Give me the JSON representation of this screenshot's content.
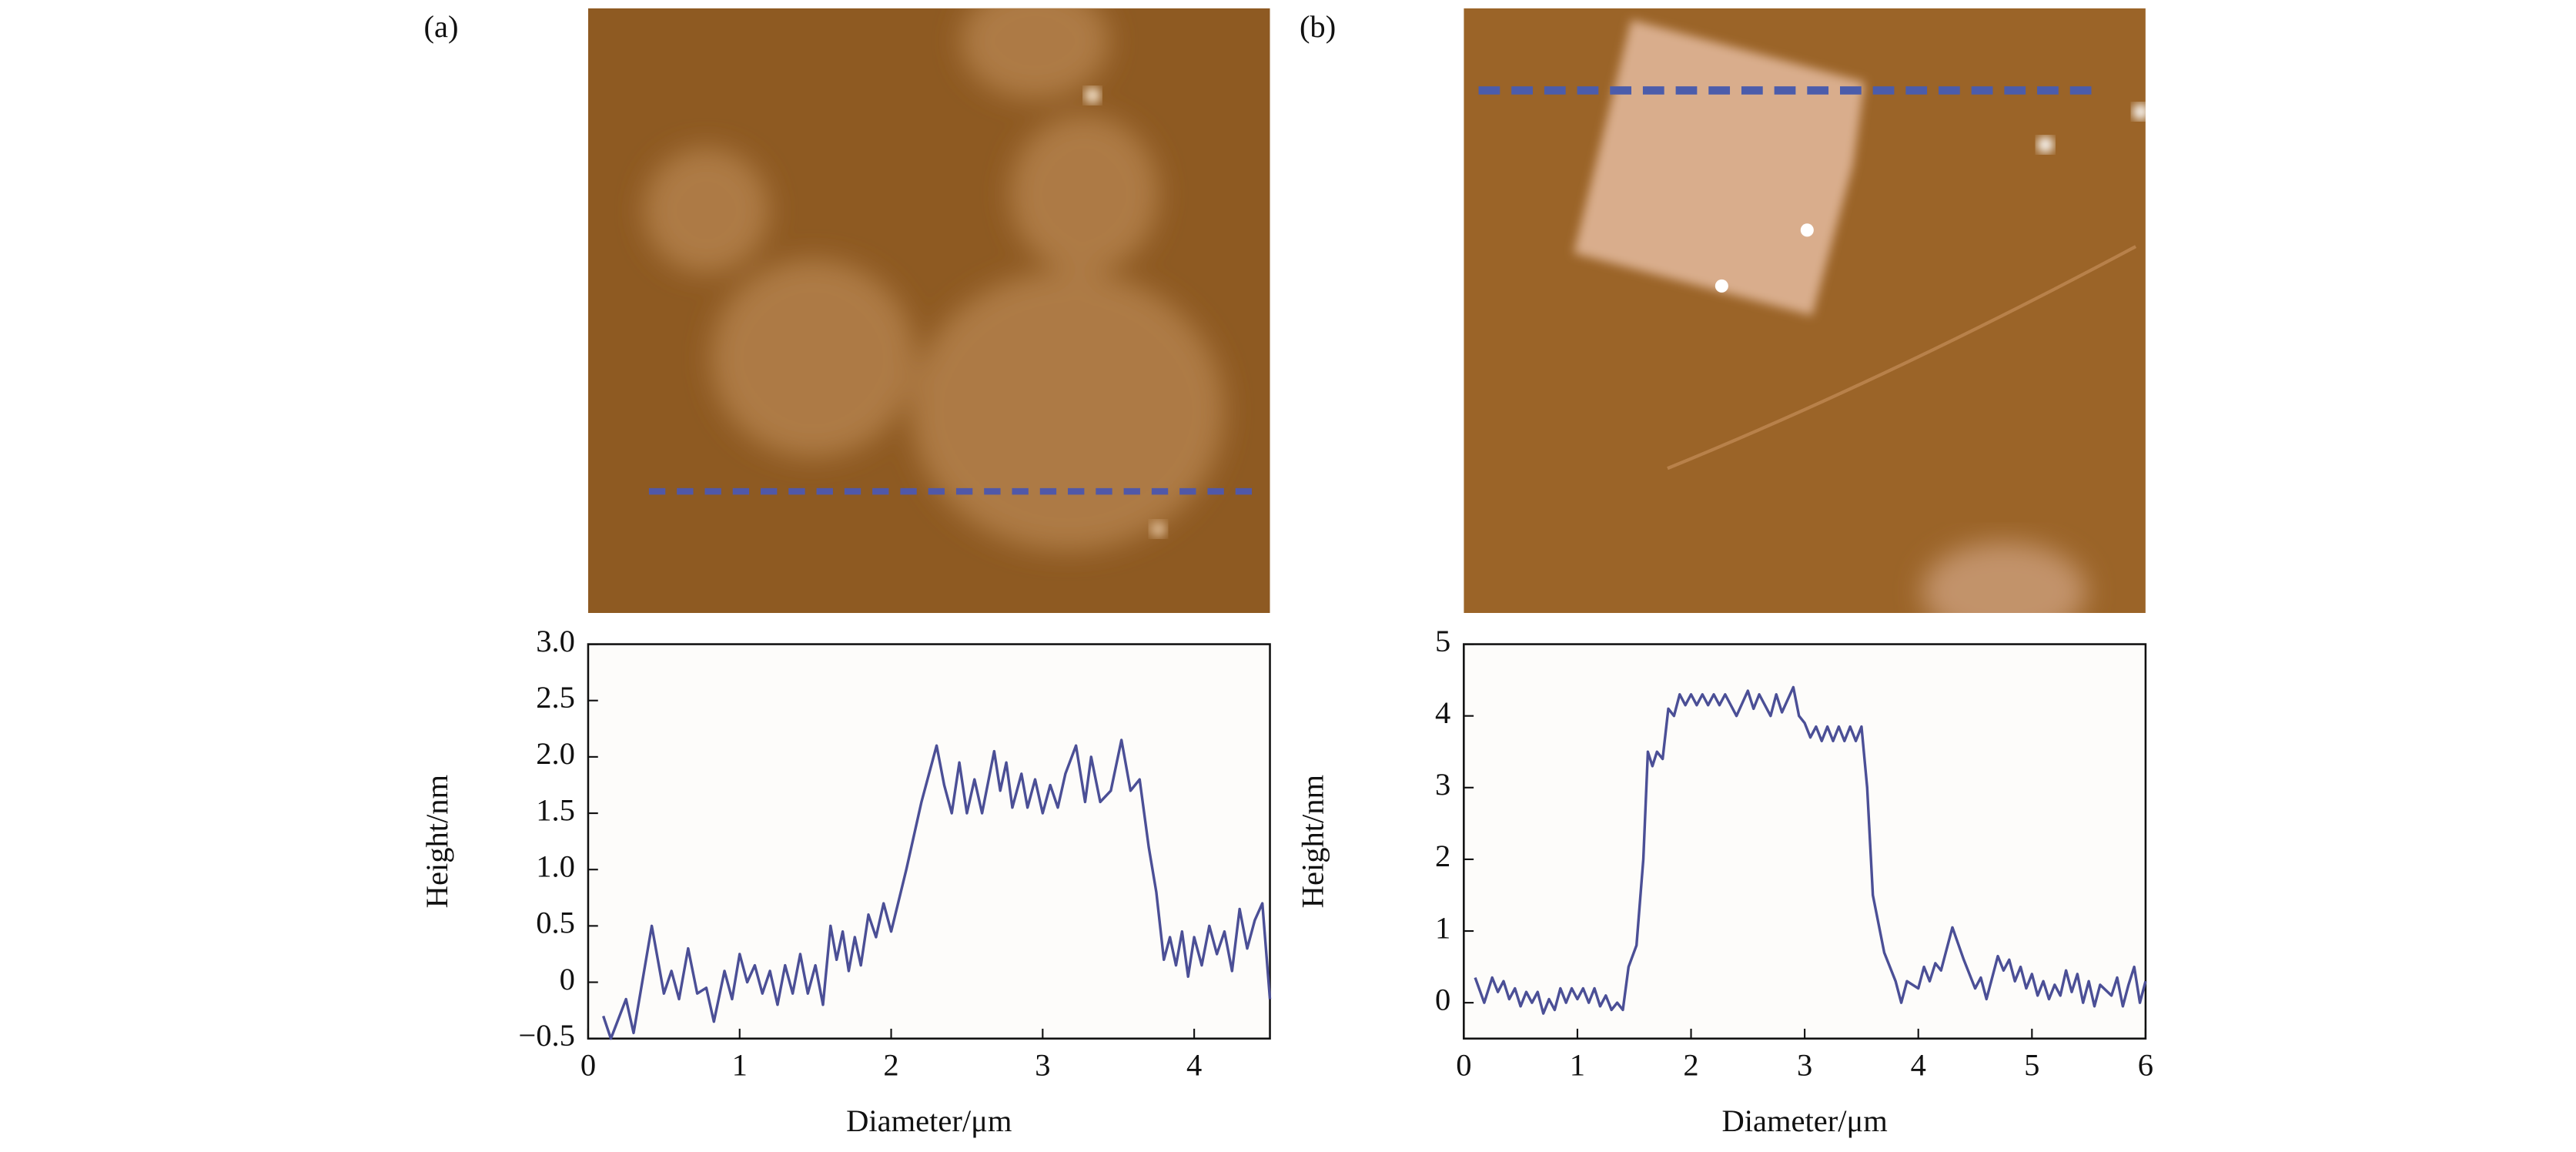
{
  "chart_data": [
    {
      "type": "line",
      "panel_label": "(a)",
      "x_label": "Diameter/μm",
      "y_label": "Height/nm",
      "xlim": [
        0,
        4.5
      ],
      "ylim": [
        -0.5,
        3.0
      ],
      "xticks": [
        0,
        1,
        2,
        3,
        4
      ],
      "yticks": [
        {
          "value": -0.5,
          "label": "−0.5"
        },
        0,
        0.5,
        {
          "value": 1.0,
          "label": "1.0"
        },
        1.5,
        {
          "value": 2.0,
          "label": "2.0"
        },
        2.5,
        {
          "value": 3.0,
          "label": "3.0"
        }
      ],
      "x": [
        0.1,
        0.15,
        0.25,
        0.3,
        0.42,
        0.5,
        0.55,
        0.6,
        0.66,
        0.72,
        0.78,
        0.83,
        0.9,
        0.95,
        1.0,
        1.05,
        1.1,
        1.15,
        1.2,
        1.25,
        1.3,
        1.35,
        1.4,
        1.45,
        1.5,
        1.55,
        1.6,
        1.64,
        1.68,
        1.72,
        1.76,
        1.8,
        1.85,
        1.9,
        1.95,
        2.0,
        2.1,
        2.2,
        2.3,
        2.35,
        2.4,
        2.45,
        2.5,
        2.55,
        2.6,
        2.68,
        2.72,
        2.76,
        2.8,
        2.86,
        2.9,
        2.95,
        3.0,
        3.05,
        3.1,
        3.15,
        3.22,
        3.28,
        3.32,
        3.38,
        3.45,
        3.52,
        3.58,
        3.64,
        3.7,
        3.75,
        3.8,
        3.84,
        3.88,
        3.92,
        3.96,
        4.0,
        4.05,
        4.1,
        4.15,
        4.2,
        4.25,
        4.3,
        4.35,
        4.4,
        4.45,
        4.5
      ],
      "series": [
        {
          "color": "#4b4f96",
          "values": [
            -0.3,
            -0.5,
            -0.15,
            -0.45,
            0.5,
            -0.1,
            0.1,
            -0.15,
            0.3,
            -0.1,
            -0.05,
            -0.35,
            0.1,
            -0.15,
            0.25,
            0.0,
            0.15,
            -0.1,
            0.1,
            -0.2,
            0.15,
            -0.1,
            0.25,
            -0.1,
            0.15,
            -0.2,
            0.5,
            0.2,
            0.45,
            0.1,
            0.4,
            0.15,
            0.6,
            0.4,
            0.7,
            0.45,
            1.0,
            1.6,
            2.1,
            1.75,
            1.5,
            1.95,
            1.5,
            1.8,
            1.5,
            2.05,
            1.7,
            1.95,
            1.55,
            1.85,
            1.55,
            1.8,
            1.5,
            1.75,
            1.55,
            1.85,
            2.1,
            1.6,
            2.0,
            1.6,
            1.7,
            2.15,
            1.7,
            1.8,
            1.2,
            0.8,
            0.2,
            0.4,
            0.15,
            0.45,
            0.05,
            0.4,
            0.15,
            0.5,
            0.25,
            0.45,
            0.1,
            0.65,
            0.3,
            0.55,
            0.7,
            -0.15
          ]
        }
      ]
    },
    {
      "type": "line",
      "panel_label": "(b)",
      "x_label": "Diameter/μm",
      "y_label": "Height/nm",
      "xlim": [
        0,
        6
      ],
      "ylim": [
        -0.5,
        5
      ],
      "xticks": [
        0,
        1,
        2,
        3,
        4,
        5,
        6
      ],
      "yticks": [
        0,
        1,
        2,
        3,
        4,
        5
      ],
      "x": [
        0.1,
        0.18,
        0.25,
        0.3,
        0.35,
        0.4,
        0.45,
        0.5,
        0.55,
        0.6,
        0.65,
        0.7,
        0.75,
        0.8,
        0.85,
        0.9,
        0.95,
        1.0,
        1.05,
        1.1,
        1.15,
        1.2,
        1.25,
        1.3,
        1.35,
        1.4,
        1.45,
        1.52,
        1.58,
        1.62,
        1.66,
        1.7,
        1.75,
        1.8,
        1.85,
        1.9,
        1.95,
        2.0,
        2.05,
        2.1,
        2.15,
        2.2,
        2.25,
        2.3,
        2.4,
        2.5,
        2.55,
        2.6,
        2.7,
        2.75,
        2.8,
        2.9,
        2.95,
        3.0,
        3.05,
        3.1,
        3.15,
        3.2,
        3.25,
        3.3,
        3.35,
        3.4,
        3.45,
        3.5,
        3.55,
        3.6,
        3.7,
        3.8,
        3.85,
        3.9,
        4.0,
        4.05,
        4.1,
        4.15,
        4.2,
        4.3,
        4.4,
        4.45,
        4.5,
        4.55,
        4.6,
        4.7,
        4.75,
        4.8,
        4.85,
        4.9,
        4.95,
        5.0,
        5.05,
        5.1,
        5.15,
        5.2,
        5.25,
        5.3,
        5.35,
        5.4,
        5.45,
        5.5,
        5.55,
        5.6,
        5.7,
        5.75,
        5.8,
        5.85,
        5.9,
        5.95,
        6.0
      ],
      "series": [
        {
          "color": "#4b4f96",
          "values": [
            0.35,
            0.0,
            0.35,
            0.15,
            0.3,
            0.05,
            0.2,
            -0.05,
            0.15,
            0.0,
            0.15,
            -0.15,
            0.05,
            -0.1,
            0.2,
            0.0,
            0.2,
            0.05,
            0.2,
            0.0,
            0.2,
            -0.05,
            0.1,
            -0.1,
            0.0,
            -0.1,
            0.5,
            0.8,
            2.0,
            3.5,
            3.3,
            3.5,
            3.4,
            4.1,
            4.0,
            4.3,
            4.15,
            4.3,
            4.15,
            4.3,
            4.15,
            4.3,
            4.15,
            4.3,
            4.0,
            4.35,
            4.1,
            4.3,
            4.0,
            4.3,
            4.05,
            4.4,
            4.0,
            3.9,
            3.7,
            3.85,
            3.65,
            3.85,
            3.65,
            3.85,
            3.65,
            3.85,
            3.65,
            3.85,
            3.0,
            1.5,
            0.7,
            0.3,
            0.0,
            0.3,
            0.2,
            0.5,
            0.3,
            0.55,
            0.45,
            1.05,
            0.6,
            0.4,
            0.2,
            0.35,
            0.05,
            0.65,
            0.45,
            0.6,
            0.3,
            0.5,
            0.2,
            0.4,
            0.1,
            0.3,
            0.05,
            0.25,
            0.1,
            0.45,
            0.15,
            0.4,
            0.0,
            0.3,
            -0.05,
            0.25,
            0.1,
            0.35,
            -0.05,
            0.25,
            0.5,
            0.0,
            0.3
          ]
        }
      ]
    }
  ]
}
